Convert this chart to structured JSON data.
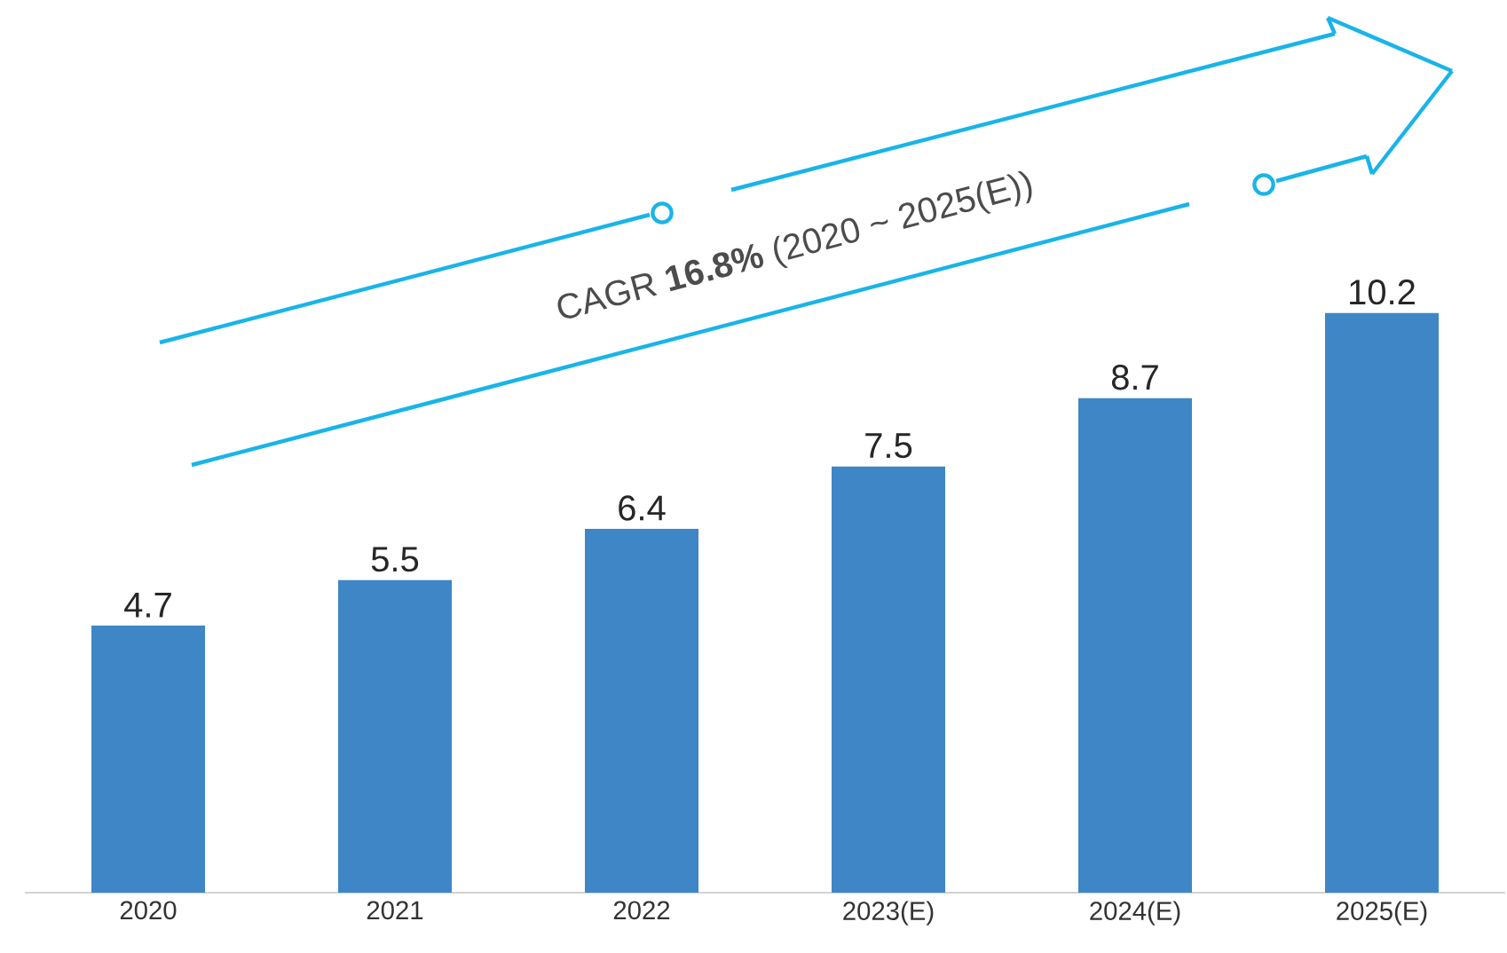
{
  "chart_data": {
    "type": "bar",
    "categories": [
      "2020",
      "2021",
      "2022",
      "2023(E)",
      "2024(E)",
      "2025(E)"
    ],
    "values": [
      4.7,
      5.5,
      6.4,
      7.5,
      8.7,
      10.2
    ],
    "color": "#3f86c6",
    "data_labels": true,
    "annotations": [
      "CAGR **16.8%** (2020 ~ 2025(E))"
    ]
  }
}
